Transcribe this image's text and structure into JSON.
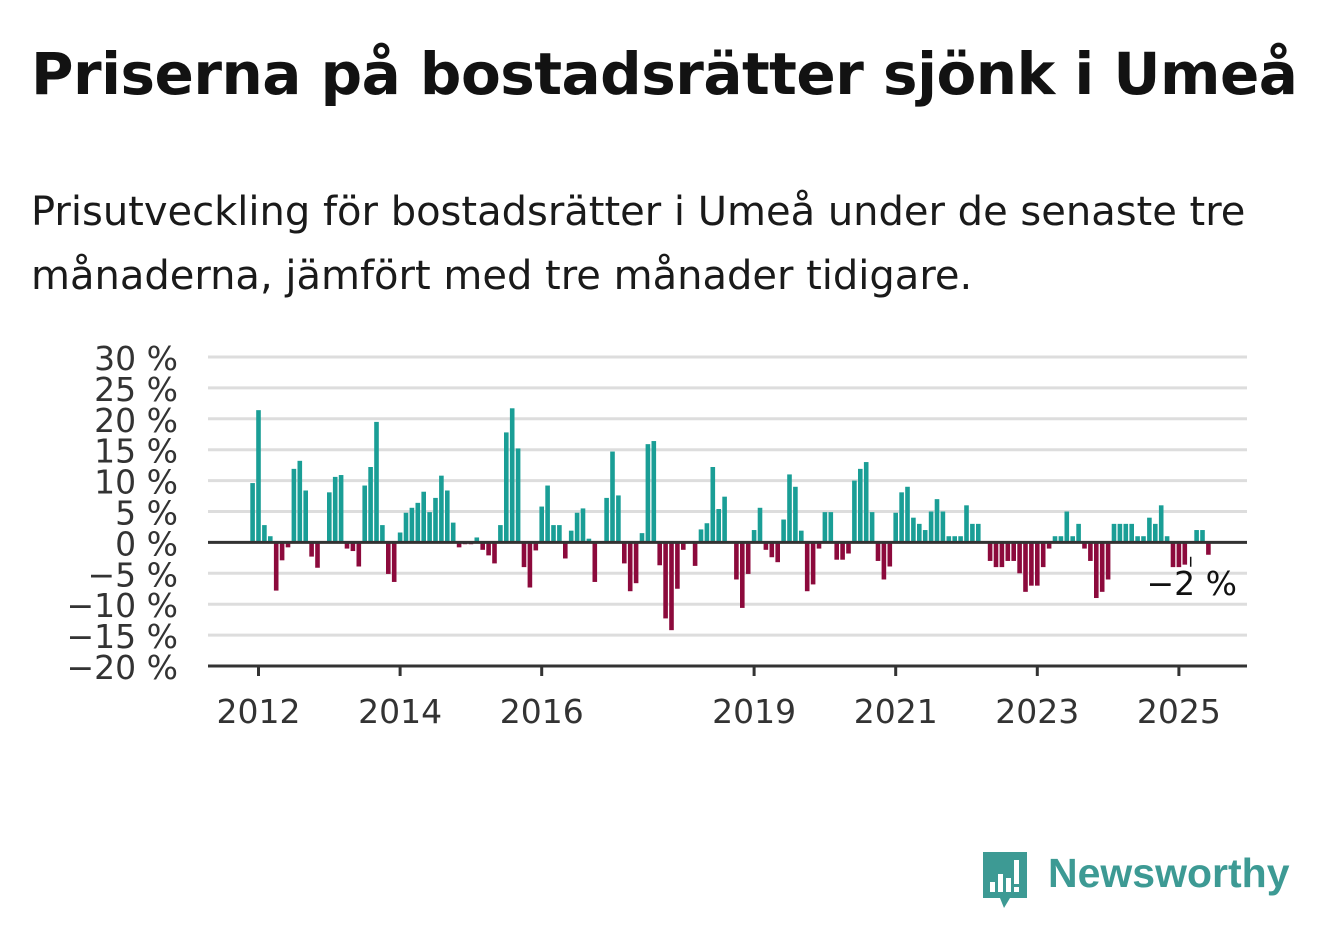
{
  "title": "Priserna på bostadsrätter sjönk i Umeå",
  "subtitle": "Prisutveckling för bostadsrätter i Umeå under de senaste tre månaderna, jämfört med tre månader tidigare.",
  "brand": {
    "name": "Newsworthy",
    "color": "#3d9a94"
  },
  "colors": {
    "positive": "#1a9e96",
    "negative": "#8c0a3c",
    "grid": "#dddddd",
    "axis": "#333333"
  },
  "chart_data": {
    "type": "bar",
    "x_start": "2011-12",
    "ylim": [
      -20,
      30
    ],
    "yticks": [
      30,
      25,
      20,
      15,
      10,
      5,
      0,
      -5,
      -10,
      -15,
      -20
    ],
    "ytick_labels": [
      "30 %",
      "25 %",
      "20 %",
      "15 %",
      "10 %",
      "5 %",
      "0 %",
      "−5 %",
      "−10 %",
      "−15 %",
      "−20 %"
    ],
    "xtick_labels": [
      {
        "label": "2012",
        "month": "2012-01"
      },
      {
        "label": "2014",
        "month": "2014-01"
      },
      {
        "label": "2016",
        "month": "2016-01"
      },
      {
        "label": "2019",
        "month": "2019-01"
      },
      {
        "label": "2021",
        "month": "2021-01"
      },
      {
        "label": "2023",
        "month": "2023-01"
      },
      {
        "label": "2025",
        "month": "2025-01"
      }
    ],
    "grid": true,
    "annotation": {
      "text": "−2 %",
      "month": "2025-03",
      "value": -2
    },
    "values": [
      9.6,
      21.4,
      2.8,
      1,
      -7.8,
      -2.9,
      -0.8,
      11.9,
      13.2,
      8.4,
      -2.3,
      -4.1,
      0,
      8.1,
      10.6,
      10.9,
      -1,
      -1.4,
      -3.9,
      9.2,
      12.2,
      19.5,
      2.8,
      -5.1,
      -6.4,
      1.6,
      4.8,
      5.6,
      6.4,
      8.2,
      4.9,
      7.2,
      10.8,
      8.4,
      3.2,
      -0.8,
      -0.3,
      -0.3,
      0.8,
      -1.2,
      -2.1,
      -3.4,
      2.8,
      17.8,
      21.7,
      15.2,
      -4,
      -7.3,
      -1.3,
      5.8,
      9.2,
      2.8,
      2.8,
      -2.6,
      1.9,
      4.8,
      5.5,
      0.6,
      -6.4,
      0,
      7.2,
      14.7,
      7.6,
      -3.4,
      -7.9,
      -6.6,
      1.5,
      15.9,
      16.4,
      -3.7,
      -12.3,
      -14.2,
      -7.5,
      -1.2,
      0,
      -3.8,
      2.1,
      3.1,
      12.2,
      5.4,
      7.4,
      0,
      -6,
      -10.6,
      -5.1,
      2,
      5.6,
      -1.2,
      -2.4,
      -3.2,
      3.7,
      11,
      9,
      1.9,
      -7.9,
      -6.8,
      -1,
      4.9,
      4.9,
      -2.8,
      -2.8,
      -1.8,
      10,
      11.9,
      13,
      4.9,
      -3,
      -6,
      -3.9,
      4.8,
      8.1,
      9,
      4,
      3,
      2,
      5,
      7,
      5,
      1,
      1,
      1,
      6,
      3,
      3,
      0,
      -3,
      -4,
      -4,
      -3,
      -3,
      -5,
      -8,
      -7,
      -7,
      -4,
      -1,
      1,
      1,
      5,
      1,
      3,
      -1,
      -3,
      -9,
      -8,
      -6,
      3,
      3,
      3,
      3,
      1,
      1,
      4,
      3,
      6,
      1,
      -4,
      -4,
      -3.6,
      0,
      2,
      2,
      -2
    ]
  }
}
